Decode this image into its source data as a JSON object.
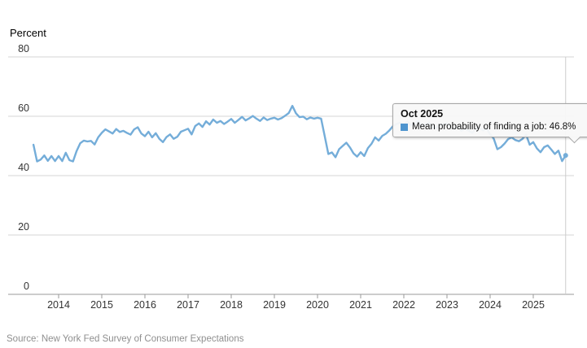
{
  "y_axis_title": "Percent",
  "source_text": "Source: New York Fed Survey of Consumer Expectations",
  "tooltip": {
    "title": "Oct 2025",
    "series_label": "Mean probability of finding a job",
    "value": "46.8%"
  },
  "colors": {
    "line": "#74add9",
    "tooltip_marker": "#4e94ce",
    "gridline": "#d6d6d6",
    "axis": "#9a9a9a",
    "tick": "#9a9a9a",
    "crosshair": "#cccccc",
    "label": "#333333",
    "source": "#8f8f8f"
  },
  "chart_data": {
    "type": "line",
    "title": "",
    "xlabel": "",
    "ylabel": "Percent",
    "ylim": [
      0,
      80
    ],
    "yticks": [
      0,
      20,
      40,
      60,
      80
    ],
    "xticks": [
      "2014",
      "2015",
      "2016",
      "2017",
      "2018",
      "2019",
      "2020",
      "2021",
      "2022",
      "2023",
      "2024",
      "2025"
    ],
    "grid": true,
    "legend_position": "none",
    "highlight_point": {
      "label": "Oct 2025",
      "value": 46.8
    },
    "series": [
      {
        "name": "Mean probability of finding a job",
        "frequency": "monthly",
        "start": "2013-06",
        "end": "2025-10",
        "values": [
          50.4,
          44.8,
          45.4,
          46.8,
          45.0,
          46.6,
          44.9,
          46.6,
          44.9,
          47.7,
          45.2,
          44.8,
          48.3,
          50.9,
          51.8,
          51.5,
          51.7,
          50.5,
          52.9,
          54.4,
          55.6,
          54.9,
          54.2,
          55.7,
          54.7,
          55.1,
          54.4,
          53.8,
          55.6,
          56.3,
          54.2,
          53.3,
          54.8,
          52.9,
          54.3,
          52.4,
          51.3,
          53.0,
          53.9,
          52.4,
          53.1,
          54.8,
          55.3,
          55.8,
          53.9,
          56.7,
          57.6,
          56.4,
          58.3,
          57.2,
          58.9,
          57.8,
          58.4,
          57.4,
          58.2,
          59.1,
          57.8,
          58.8,
          59.8,
          58.6,
          59.3,
          60.1,
          59.2,
          58.4,
          59.6,
          58.7,
          59.2,
          59.5,
          58.9,
          59.4,
          60.2,
          61.1,
          63.5,
          61.0,
          59.7,
          59.9,
          59.0,
          59.6,
          59.2,
          59.5,
          59.2,
          53.2,
          47.3,
          47.8,
          46.2,
          48.9,
          50.0,
          51.1,
          49.5,
          47.5,
          46.4,
          47.9,
          46.6,
          49.3,
          50.7,
          52.9,
          51.8,
          53.4,
          54.1,
          55.3,
          56.7,
          57.4,
          57.8,
          57.3,
          58.2,
          56.9,
          57.6,
          58.4,
          56.8,
          57.1,
          57.9,
          56.4,
          56.0,
          57.3,
          57.1,
          57.6,
          56.2,
          55.7,
          56.6,
          55.1,
          55.9,
          55.2,
          54.4,
          55.7,
          56.3,
          55.2,
          55.8,
          54.0,
          52.5,
          48.9,
          49.6,
          50.8,
          52.3,
          52.9,
          52.0,
          51.6,
          52.4,
          53.8,
          50.4,
          51.3,
          49.2,
          47.9,
          49.6,
          50.2,
          48.8,
          47.3,
          48.4,
          44.9,
          46.8
        ]
      }
    ]
  }
}
